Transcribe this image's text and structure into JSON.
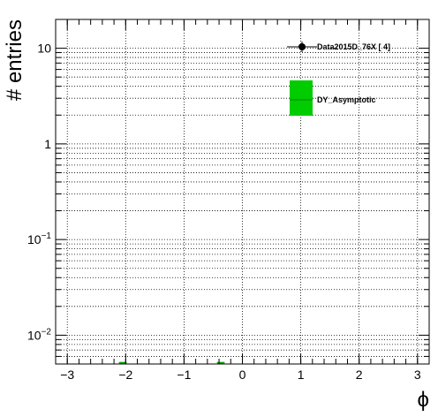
{
  "chart_data": {
    "type": "bar",
    "xlabel": "ϕ",
    "ylabel": "# entries",
    "xlim": [
      -3.2,
      3.2
    ],
    "ylim": [
      0.005,
      20
    ],
    "yscale": "log",
    "grid": true,
    "legend_position": "top-right",
    "x_ticks": [
      {
        "value": -3,
        "label": "−3"
      },
      {
        "value": -2,
        "label": "−2"
      },
      {
        "value": -1,
        "label": "−1"
      },
      {
        "value": 0,
        "label": "0"
      },
      {
        "value": 1,
        "label": "1"
      },
      {
        "value": 2,
        "label": "2"
      },
      {
        "value": 3,
        "label": "3"
      }
    ],
    "y_ticks": [
      {
        "value": 0.01,
        "base": "10",
        "exp": "−2"
      },
      {
        "value": 0.1,
        "base": "10",
        "exp": "−1"
      },
      {
        "value": 1,
        "base": "1",
        "exp": ""
      },
      {
        "value": 10,
        "base": "10",
        "exp": ""
      }
    ],
    "series": [
      {
        "name": "Data2015D_76X [        4]",
        "style": "points",
        "color": "#000000",
        "points": []
      },
      {
        "name": "DY_Asymptotic",
        "style": "band",
        "color": "#00cc00",
        "line_color": "#009900",
        "bins": [
          {
            "x": -2.05,
            "width": 0.13,
            "y": 0.0052
          },
          {
            "x": -0.37,
            "width": 0.13,
            "y": 0.0052
          }
        ]
      }
    ]
  }
}
